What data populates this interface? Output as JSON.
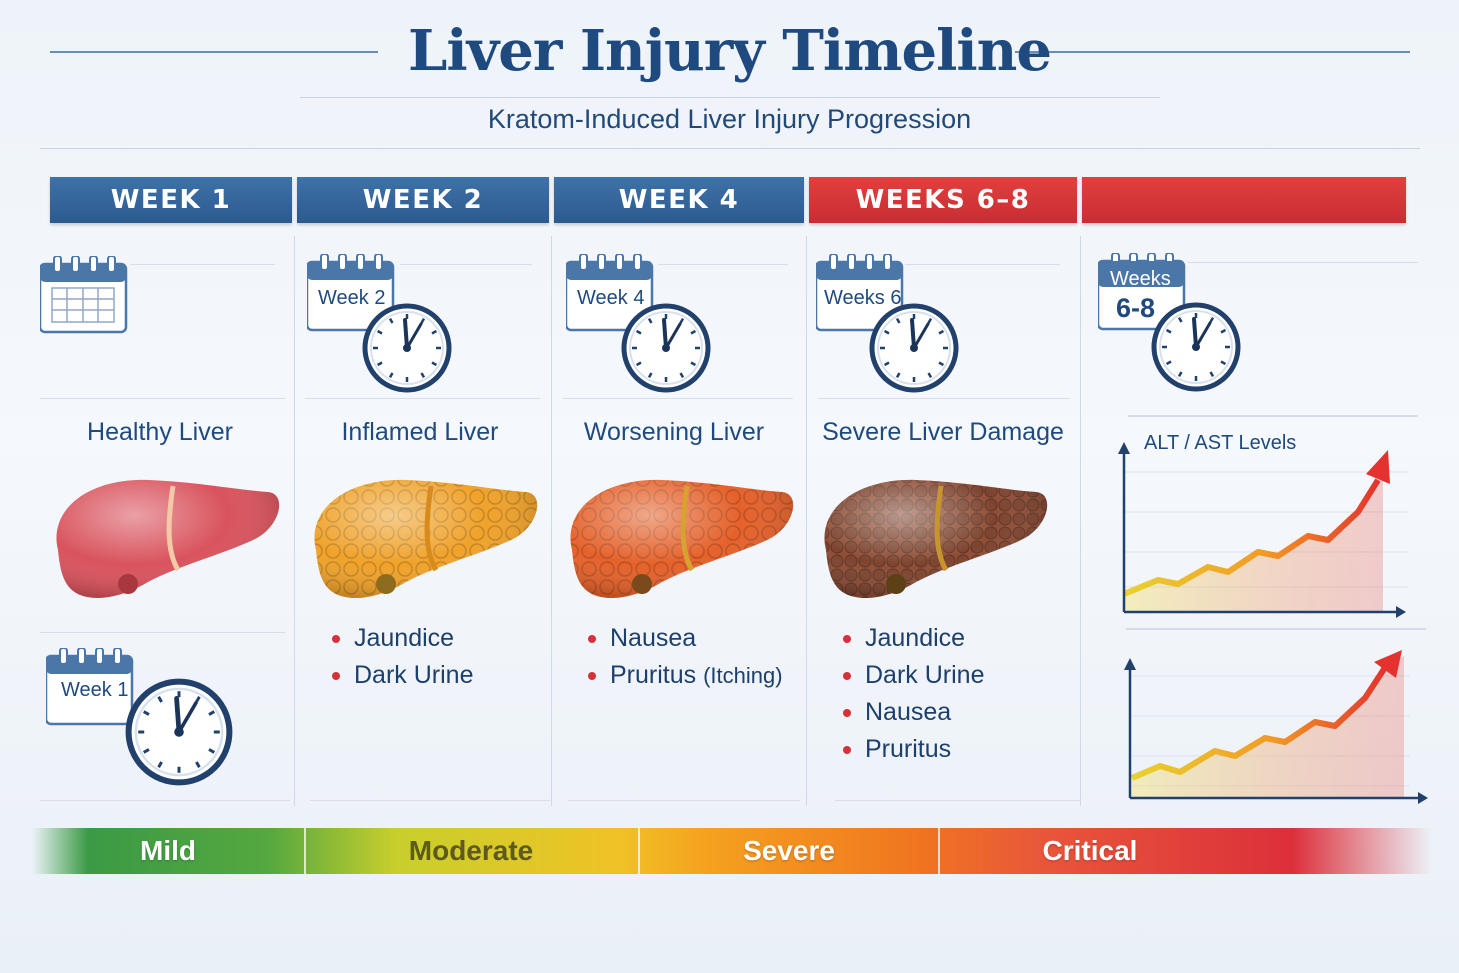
{
  "header": {
    "title": "Liver Injury Timeline",
    "subtitle": "Kratom-Induced Liver Injury Progression"
  },
  "columns": [
    {
      "header": "WEEK 1",
      "header_color": "#2f5f94",
      "calendar_label": "Week 1",
      "liver_label": "Healthy Liver",
      "liver_color": "#d9535d",
      "symptoms": []
    },
    {
      "header": "WEEK 2",
      "header_color": "#2f5f94",
      "calendar_label": "Week 2",
      "liver_label": "Inflamed Liver",
      "liver_color": "#f0a22a",
      "symptoms": [
        "Jaundice",
        "Dark Urine"
      ]
    },
    {
      "header": "WEEK 4",
      "header_color": "#2f5f94",
      "calendar_label": "Week 4",
      "liver_label": "Worsening Liver",
      "liver_color": "#e5612a",
      "symptoms": [
        "Nausea",
        "Pruritus"
      ],
      "symptom_note": "(Itching)"
    },
    {
      "header": "WEEKS 6–8",
      "header_color": "#d0303a",
      "calendar_label": "Weeks 6",
      "liver_label": "Severe Liver Damage",
      "liver_color": "#8e4d35",
      "symptoms": [
        "Jaundice",
        "Dark Urine",
        "Nausea",
        "Pruritus"
      ]
    },
    {
      "header": "",
      "header_color": "#d0303a",
      "calendar_label_line1": "Weeks",
      "calendar_label_line2": "6-8"
    }
  ],
  "chart": {
    "label": "ALT / AST Levels",
    "trend": "rising"
  },
  "severity": [
    "Mild",
    "Moderate",
    "Severe",
    "Critical"
  ],
  "colors": {
    "title": "#1f4a7f",
    "header_blue": "#2f5f94",
    "header_red": "#d0303a",
    "bullet": "#d6303a"
  }
}
